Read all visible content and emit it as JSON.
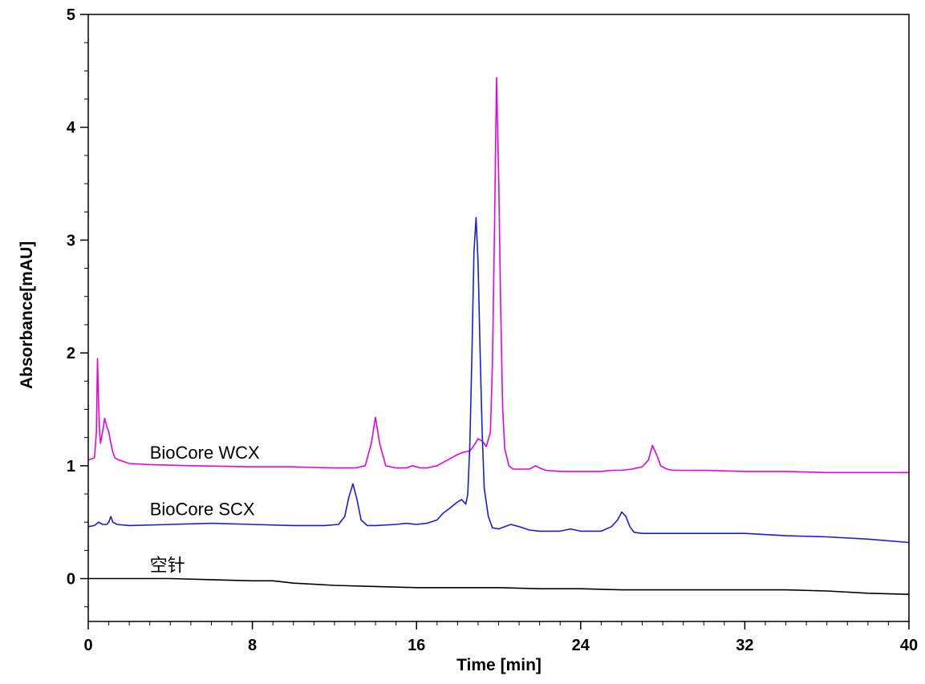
{
  "chart_data": {
    "type": "line",
    "title": "",
    "xlabel": "Time [min]",
    "ylabel": "Absorbance[mAU]",
    "xlim": [
      0,
      40
    ],
    "ylim": [
      -0.38,
      5
    ],
    "x_ticks": [
      "0",
      "8",
      "16",
      "24",
      "32",
      "40"
    ],
    "y_ticks": [
      "0",
      "1",
      "2",
      "3",
      "4",
      "5"
    ],
    "grid": false,
    "legend": "none",
    "series": [
      {
        "name": "BioCore WCX",
        "color": "#e600e6",
        "x": [
          0,
          0.3,
          0.4,
          0.45,
          0.5,
          0.55,
          0.6,
          0.7,
          0.8,
          0.9,
          1.0,
          1.05,
          1.1,
          1.2,
          1.3,
          1.5,
          2.0,
          3.0,
          5.0,
          8.0,
          10.0,
          12.0,
          13.0,
          13.5,
          13.8,
          14.0,
          14.2,
          14.5,
          15.0,
          15.5,
          15.8,
          16.2,
          16.5,
          17.0,
          17.5,
          18.0,
          18.3,
          18.6,
          18.8,
          19.0,
          19.2,
          19.4,
          19.6,
          19.7,
          19.8,
          19.9,
          20.0,
          20.1,
          20.2,
          20.3,
          20.5,
          20.7,
          21.0,
          21.5,
          21.8,
          22.0,
          22.3,
          23.0,
          24.0,
          25.0,
          25.5,
          26.0,
          26.5,
          27.0,
          27.3,
          27.5,
          27.7,
          27.9,
          28.2,
          28.5,
          29.0,
          30.0,
          32.0,
          34.0,
          36.0,
          38.0,
          40.0
        ],
        "y": [
          1.05,
          1.07,
          1.3,
          1.95,
          1.6,
          1.3,
          1.2,
          1.3,
          1.42,
          1.35,
          1.3,
          1.25,
          1.2,
          1.12,
          1.07,
          1.05,
          1.02,
          1.01,
          1.0,
          0.99,
          0.99,
          0.98,
          0.98,
          1.0,
          1.2,
          1.43,
          1.2,
          1.0,
          0.98,
          0.98,
          1.0,
          0.98,
          0.98,
          1.0,
          1.05,
          1.1,
          1.12,
          1.13,
          1.18,
          1.24,
          1.22,
          1.17,
          1.3,
          1.9,
          3.1,
          4.44,
          3.6,
          2.4,
          1.5,
          1.15,
          1.0,
          0.97,
          0.97,
          0.97,
          1.0,
          0.98,
          0.96,
          0.95,
          0.95,
          0.95,
          0.96,
          0.96,
          0.97,
          0.99,
          1.05,
          1.18,
          1.1,
          1.0,
          0.97,
          0.96,
          0.96,
          0.96,
          0.95,
          0.95,
          0.94,
          0.94,
          0.94
        ]
      },
      {
        "name": "BioCore SCX",
        "color": "#1a1ae6",
        "x": [
          0,
          0.3,
          0.5,
          0.7,
          0.9,
          1.0,
          1.1,
          1.2,
          1.4,
          2.0,
          4.0,
          6.0,
          8.0,
          10.0,
          11.5,
          12.2,
          12.5,
          12.7,
          12.9,
          13.1,
          13.3,
          13.6,
          14.0,
          15.0,
          15.5,
          16.0,
          16.5,
          17.0,
          17.3,
          17.6,
          18.0,
          18.2,
          18.4,
          18.5,
          18.6,
          18.7,
          18.8,
          18.9,
          19.0,
          19.1,
          19.2,
          19.3,
          19.5,
          19.7,
          20.0,
          20.3,
          20.6,
          21.0,
          21.5,
          22.0,
          23.0,
          23.5,
          24.0,
          25.0,
          25.5,
          25.8,
          26.0,
          26.2,
          26.4,
          26.6,
          27.0,
          28.0,
          30.0,
          32.0,
          34.0,
          36.0,
          38.0,
          40.0
        ],
        "y": [
          0.46,
          0.47,
          0.5,
          0.48,
          0.48,
          0.5,
          0.55,
          0.5,
          0.48,
          0.47,
          0.48,
          0.49,
          0.48,
          0.47,
          0.47,
          0.48,
          0.55,
          0.72,
          0.84,
          0.7,
          0.52,
          0.47,
          0.47,
          0.48,
          0.49,
          0.48,
          0.49,
          0.52,
          0.58,
          0.62,
          0.68,
          0.7,
          0.66,
          0.75,
          1.2,
          2.0,
          2.9,
          3.2,
          2.8,
          2.0,
          1.3,
          0.8,
          0.55,
          0.45,
          0.44,
          0.46,
          0.48,
          0.46,
          0.43,
          0.42,
          0.42,
          0.44,
          0.42,
          0.42,
          0.46,
          0.52,
          0.59,
          0.55,
          0.46,
          0.41,
          0.4,
          0.4,
          0.4,
          0.4,
          0.38,
          0.37,
          0.35,
          0.32
        ]
      },
      {
        "name": "空针",
        "color": "#000000",
        "x": [
          0,
          2,
          4,
          6,
          8,
          9,
          10,
          11,
          12,
          14,
          16,
          18,
          20,
          22,
          24,
          26,
          28,
          30,
          32,
          34,
          36,
          38,
          40
        ],
        "y": [
          0.0,
          0.0,
          0.0,
          -0.01,
          -0.02,
          -0.02,
          -0.04,
          -0.05,
          -0.06,
          -0.07,
          -0.08,
          -0.08,
          -0.08,
          -0.09,
          -0.09,
          -0.1,
          -0.1,
          -0.1,
          -0.1,
          -0.1,
          -0.11,
          -0.13,
          -0.14
        ]
      }
    ]
  }
}
